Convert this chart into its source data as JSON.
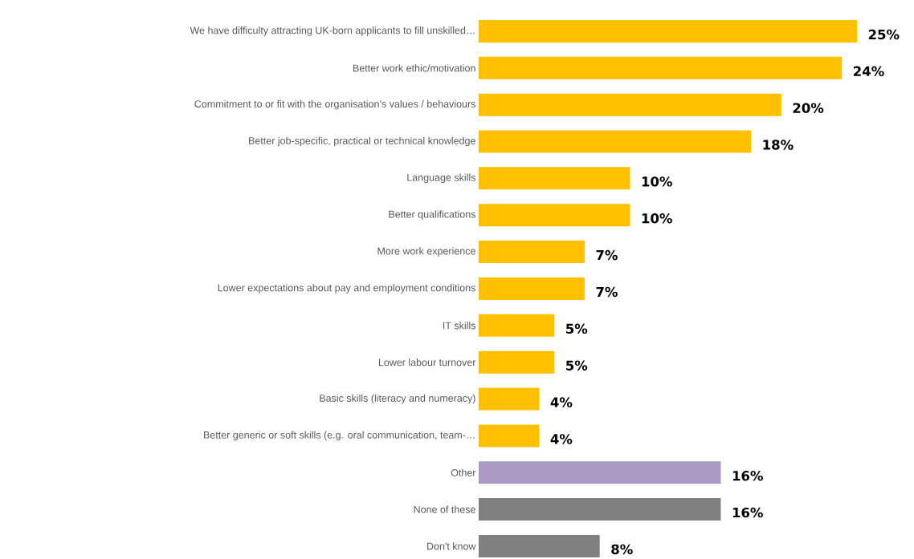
{
  "chart_data": {
    "type": "bar",
    "orientation": "horizontal",
    "categories": [
      "We have difficulty attracting UK-born applicants to fill unskilled…",
      "Better work ethic/motivation",
      "Commitment to or fit with the organisation’s values / behaviours",
      "Better job-specific, practical or technical knowledge",
      "Language skills",
      "Better qualifications",
      "More work experience",
      "Lower expectations about pay and employment conditions",
      "IT skills",
      "Lower labour turnover",
      "Basic skills (literacy and numeracy)",
      "Better generic or soft skills (e.g. oral communication, team-…",
      "Other",
      "None of these",
      "Don't know"
    ],
    "values": [
      25,
      24,
      20,
      18,
      10,
      10,
      7,
      7,
      5,
      5,
      4,
      4,
      16,
      16,
      8
    ],
    "value_labels": [
      "25%",
      "24%",
      "20%",
      "18%",
      "10%",
      "10%",
      "7%",
      "7%",
      "5%",
      "5%",
      "4%",
      "4%",
      "16%",
      "16%",
      "8%"
    ],
    "colors": [
      "#ffc000",
      "#ffc000",
      "#ffc000",
      "#ffc000",
      "#ffc000",
      "#ffc000",
      "#ffc000",
      "#ffc000",
      "#ffc000",
      "#ffc000",
      "#ffc000",
      "#ffc000",
      "#a99bc4",
      "#808080",
      "#808080"
    ]
  }
}
